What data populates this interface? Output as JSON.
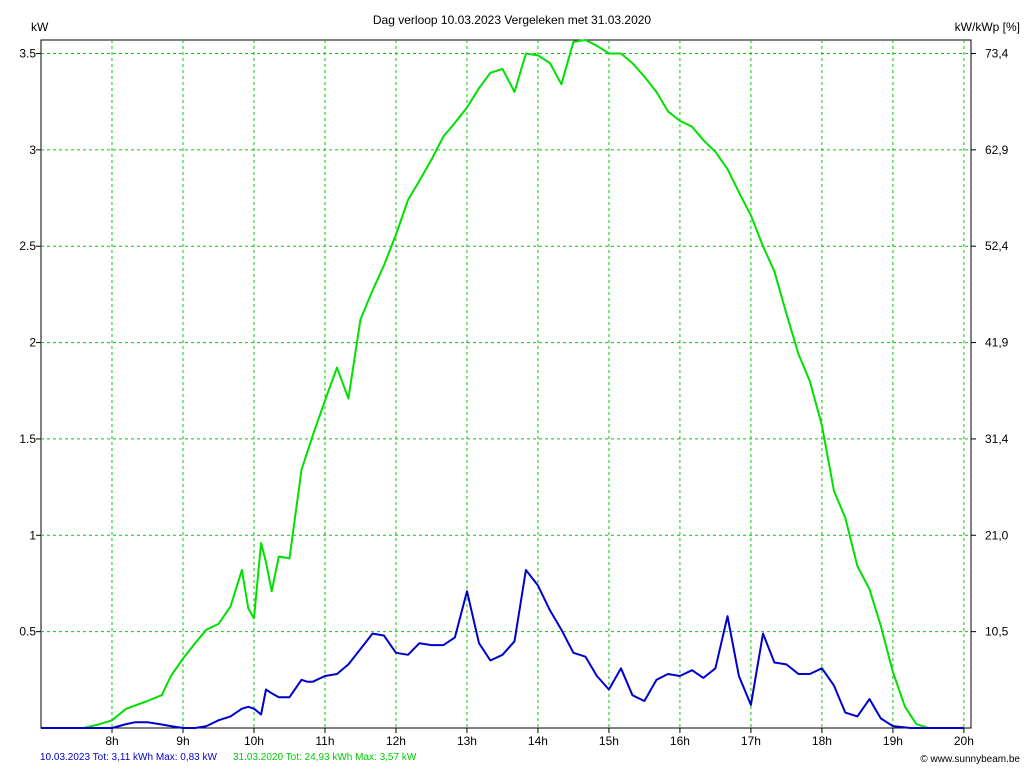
{
  "chart_data": {
    "type": "line",
    "title": "Dag  verloop 10.03.2023   Vergeleken met 31.03.2020",
    "ylabel_left": "kW",
    "ylabel_right": "kW/kWp [%]",
    "ylim": [
      0,
      3.57
    ],
    "xlim": [
      7,
      20.1
    ],
    "grid": true,
    "x_ticks": [
      8,
      9,
      10,
      11,
      12,
      13,
      14,
      15,
      16,
      17,
      18,
      19,
      20
    ],
    "x_tick_labels": [
      "8h",
      "9h",
      "10h",
      "11h",
      "12h",
      "13h",
      "14h",
      "15h",
      "16h",
      "17h",
      "18h",
      "19h",
      "20h"
    ],
    "y_ticks": [
      0.5,
      1,
      1.5,
      2,
      2.5,
      3,
      3.5
    ],
    "y_tick_labels": [
      "0.5",
      "1",
      "1.5",
      "2",
      "2.5",
      "3",
      "3.5"
    ],
    "y2_tick_labels": [
      "10,5",
      "21,0",
      "31,4",
      "41,9",
      "52,4",
      "62,9",
      "73,4"
    ],
    "series": [
      {
        "name": "31.03.2020",
        "color": "#00e000",
        "x": [
          7.0,
          7.3,
          7.6,
          7.83,
          8.0,
          8.2,
          8.5,
          8.7,
          8.83,
          9.0,
          9.17,
          9.33,
          9.5,
          9.67,
          9.83,
          9.92,
          10.0,
          10.1,
          10.17,
          10.25,
          10.35,
          10.5,
          10.67,
          10.75,
          10.83,
          11.0,
          11.17,
          11.33,
          11.5,
          11.67,
          11.83,
          12.0,
          12.17,
          12.33,
          12.5,
          12.67,
          12.83,
          13.0,
          13.17,
          13.33,
          13.5,
          13.67,
          13.83,
          14.0,
          14.17,
          14.33,
          14.5,
          14.67,
          14.83,
          15.0,
          15.17,
          15.33,
          15.5,
          15.67,
          15.83,
          16.0,
          16.17,
          16.33,
          16.5,
          16.67,
          16.83,
          17.0,
          17.17,
          17.33,
          17.5,
          17.67,
          17.83,
          18.0,
          18.17,
          18.33,
          18.5,
          18.67,
          18.83,
          19.0,
          19.17,
          19.33,
          19.5,
          19.67,
          19.83,
          20.0
        ],
        "values": [
          0.0,
          0.0,
          0.0,
          0.02,
          0.04,
          0.1,
          0.14,
          0.17,
          0.27,
          0.36,
          0.44,
          0.51,
          0.54,
          0.63,
          0.82,
          0.62,
          0.57,
          0.96,
          0.86,
          0.71,
          0.89,
          0.88,
          1.34,
          1.43,
          1.52,
          1.7,
          1.87,
          1.71,
          2.12,
          2.27,
          2.4,
          2.56,
          2.74,
          2.84,
          2.95,
          3.07,
          3.14,
          3.22,
          3.32,
          3.4,
          3.42,
          3.3,
          3.5,
          3.49,
          3.45,
          3.34,
          3.56,
          3.57,
          3.54,
          3.5,
          3.5,
          3.45,
          3.38,
          3.3,
          3.2,
          3.15,
          3.12,
          3.05,
          2.99,
          2.9,
          2.78,
          2.66,
          2.5,
          2.37,
          2.15,
          1.94,
          1.8,
          1.57,
          1.23,
          1.09,
          0.84,
          0.72,
          0.53,
          0.29,
          0.11,
          0.02,
          0.0,
          0.0,
          0.0,
          0.0
        ]
      },
      {
        "name": "10.03.2023",
        "color": "#0000cc",
        "x": [
          7.0,
          7.5,
          8.0,
          8.2,
          8.33,
          8.5,
          8.67,
          8.83,
          9.0,
          9.17,
          9.33,
          9.5,
          9.67,
          9.83,
          9.92,
          10.0,
          10.1,
          10.17,
          10.25,
          10.35,
          10.5,
          10.67,
          10.75,
          10.83,
          11.0,
          11.17,
          11.33,
          11.5,
          11.67,
          11.83,
          12.0,
          12.17,
          12.33,
          12.5,
          12.67,
          12.83,
          13.0,
          13.17,
          13.33,
          13.5,
          13.67,
          13.83,
          14.0,
          14.17,
          14.33,
          14.5,
          14.67,
          14.83,
          15.0,
          15.17,
          15.33,
          15.5,
          15.67,
          15.83,
          16.0,
          16.17,
          16.33,
          16.5,
          16.67,
          16.83,
          17.0,
          17.17,
          17.33,
          17.5,
          17.67,
          17.83,
          18.0,
          18.17,
          18.33,
          18.5,
          18.67,
          18.83,
          19.0,
          19.25,
          19.5,
          19.75,
          20.0
        ],
        "values": [
          0.0,
          0.0,
          0.0,
          0.02,
          0.03,
          0.03,
          0.02,
          0.01,
          0.0,
          0.0,
          0.01,
          0.04,
          0.06,
          0.1,
          0.11,
          0.1,
          0.07,
          0.2,
          0.18,
          0.16,
          0.16,
          0.25,
          0.24,
          0.24,
          0.27,
          0.28,
          0.33,
          0.41,
          0.49,
          0.48,
          0.39,
          0.38,
          0.44,
          0.43,
          0.43,
          0.47,
          0.71,
          0.44,
          0.35,
          0.38,
          0.45,
          0.82,
          0.74,
          0.61,
          0.51,
          0.39,
          0.37,
          0.27,
          0.2,
          0.31,
          0.17,
          0.14,
          0.25,
          0.28,
          0.27,
          0.3,
          0.26,
          0.31,
          0.58,
          0.27,
          0.12,
          0.49,
          0.34,
          0.33,
          0.28,
          0.28,
          0.31,
          0.22,
          0.08,
          0.06,
          0.15,
          0.05,
          0.01,
          0.0,
          0.0,
          0.0,
          0.0
        ]
      }
    ]
  },
  "footer": {
    "series1_text": "10.03.2023 Tot: 3,11 kWh Max: 0,83 kW",
    "series2_text": "31.03.2020 Tot: 24,93 kWh Max: 3,57 kW",
    "credit": "© www.sunnybeam.be",
    "series1_color": "#0000cc",
    "series2_color": "#00cc00"
  }
}
